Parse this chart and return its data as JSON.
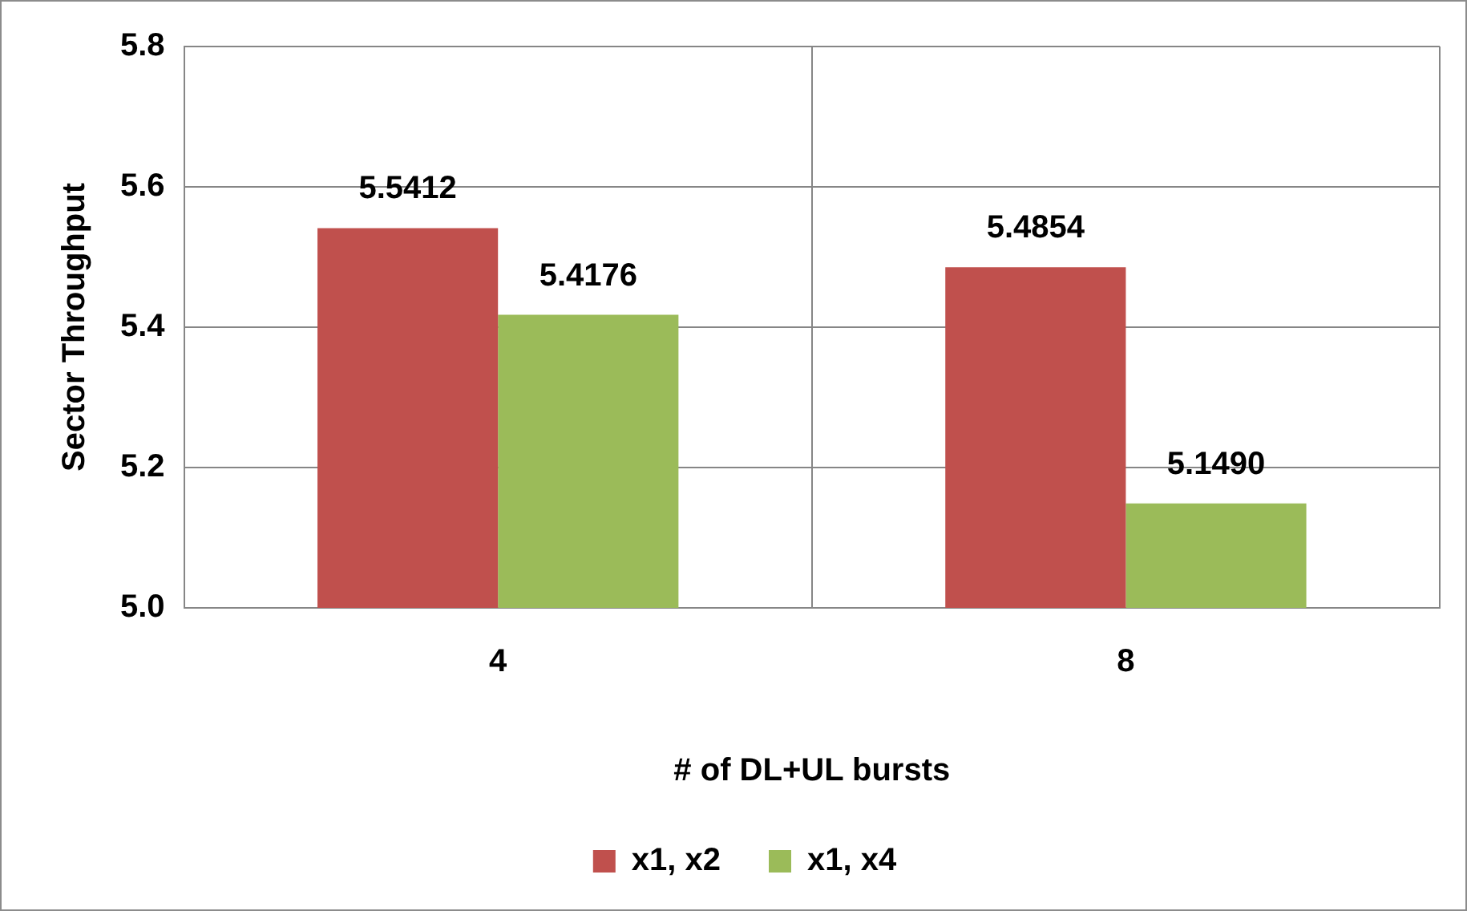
{
  "chart_data": {
    "type": "bar",
    "xlabel": "# of DL+UL bursts",
    "ylabel": "Sector Throughput",
    "categories": [
      "4",
      "8"
    ],
    "series": [
      {
        "name": "x1, x2",
        "color": "#c0504d",
        "values": [
          5.5412,
          5.4854
        ],
        "value_labels": [
          "5.5412",
          "5.4854"
        ]
      },
      {
        "name": "x1, x4",
        "color": "#9bbb59",
        "values": [
          5.4176,
          5.149
        ],
        "value_labels": [
          "5.4176",
          "5.1490"
        ]
      }
    ],
    "ylim": [
      5.0,
      5.8
    ],
    "yticks": [
      {
        "value": 5.0,
        "label": "5.0"
      },
      {
        "value": 5.2,
        "label": "5.2"
      },
      {
        "value": 5.4,
        "label": "5.4"
      },
      {
        "value": 5.6,
        "label": "5.6"
      },
      {
        "value": 5.8,
        "label": "5.8"
      }
    ],
    "grid": true,
    "legend": "bottom"
  }
}
